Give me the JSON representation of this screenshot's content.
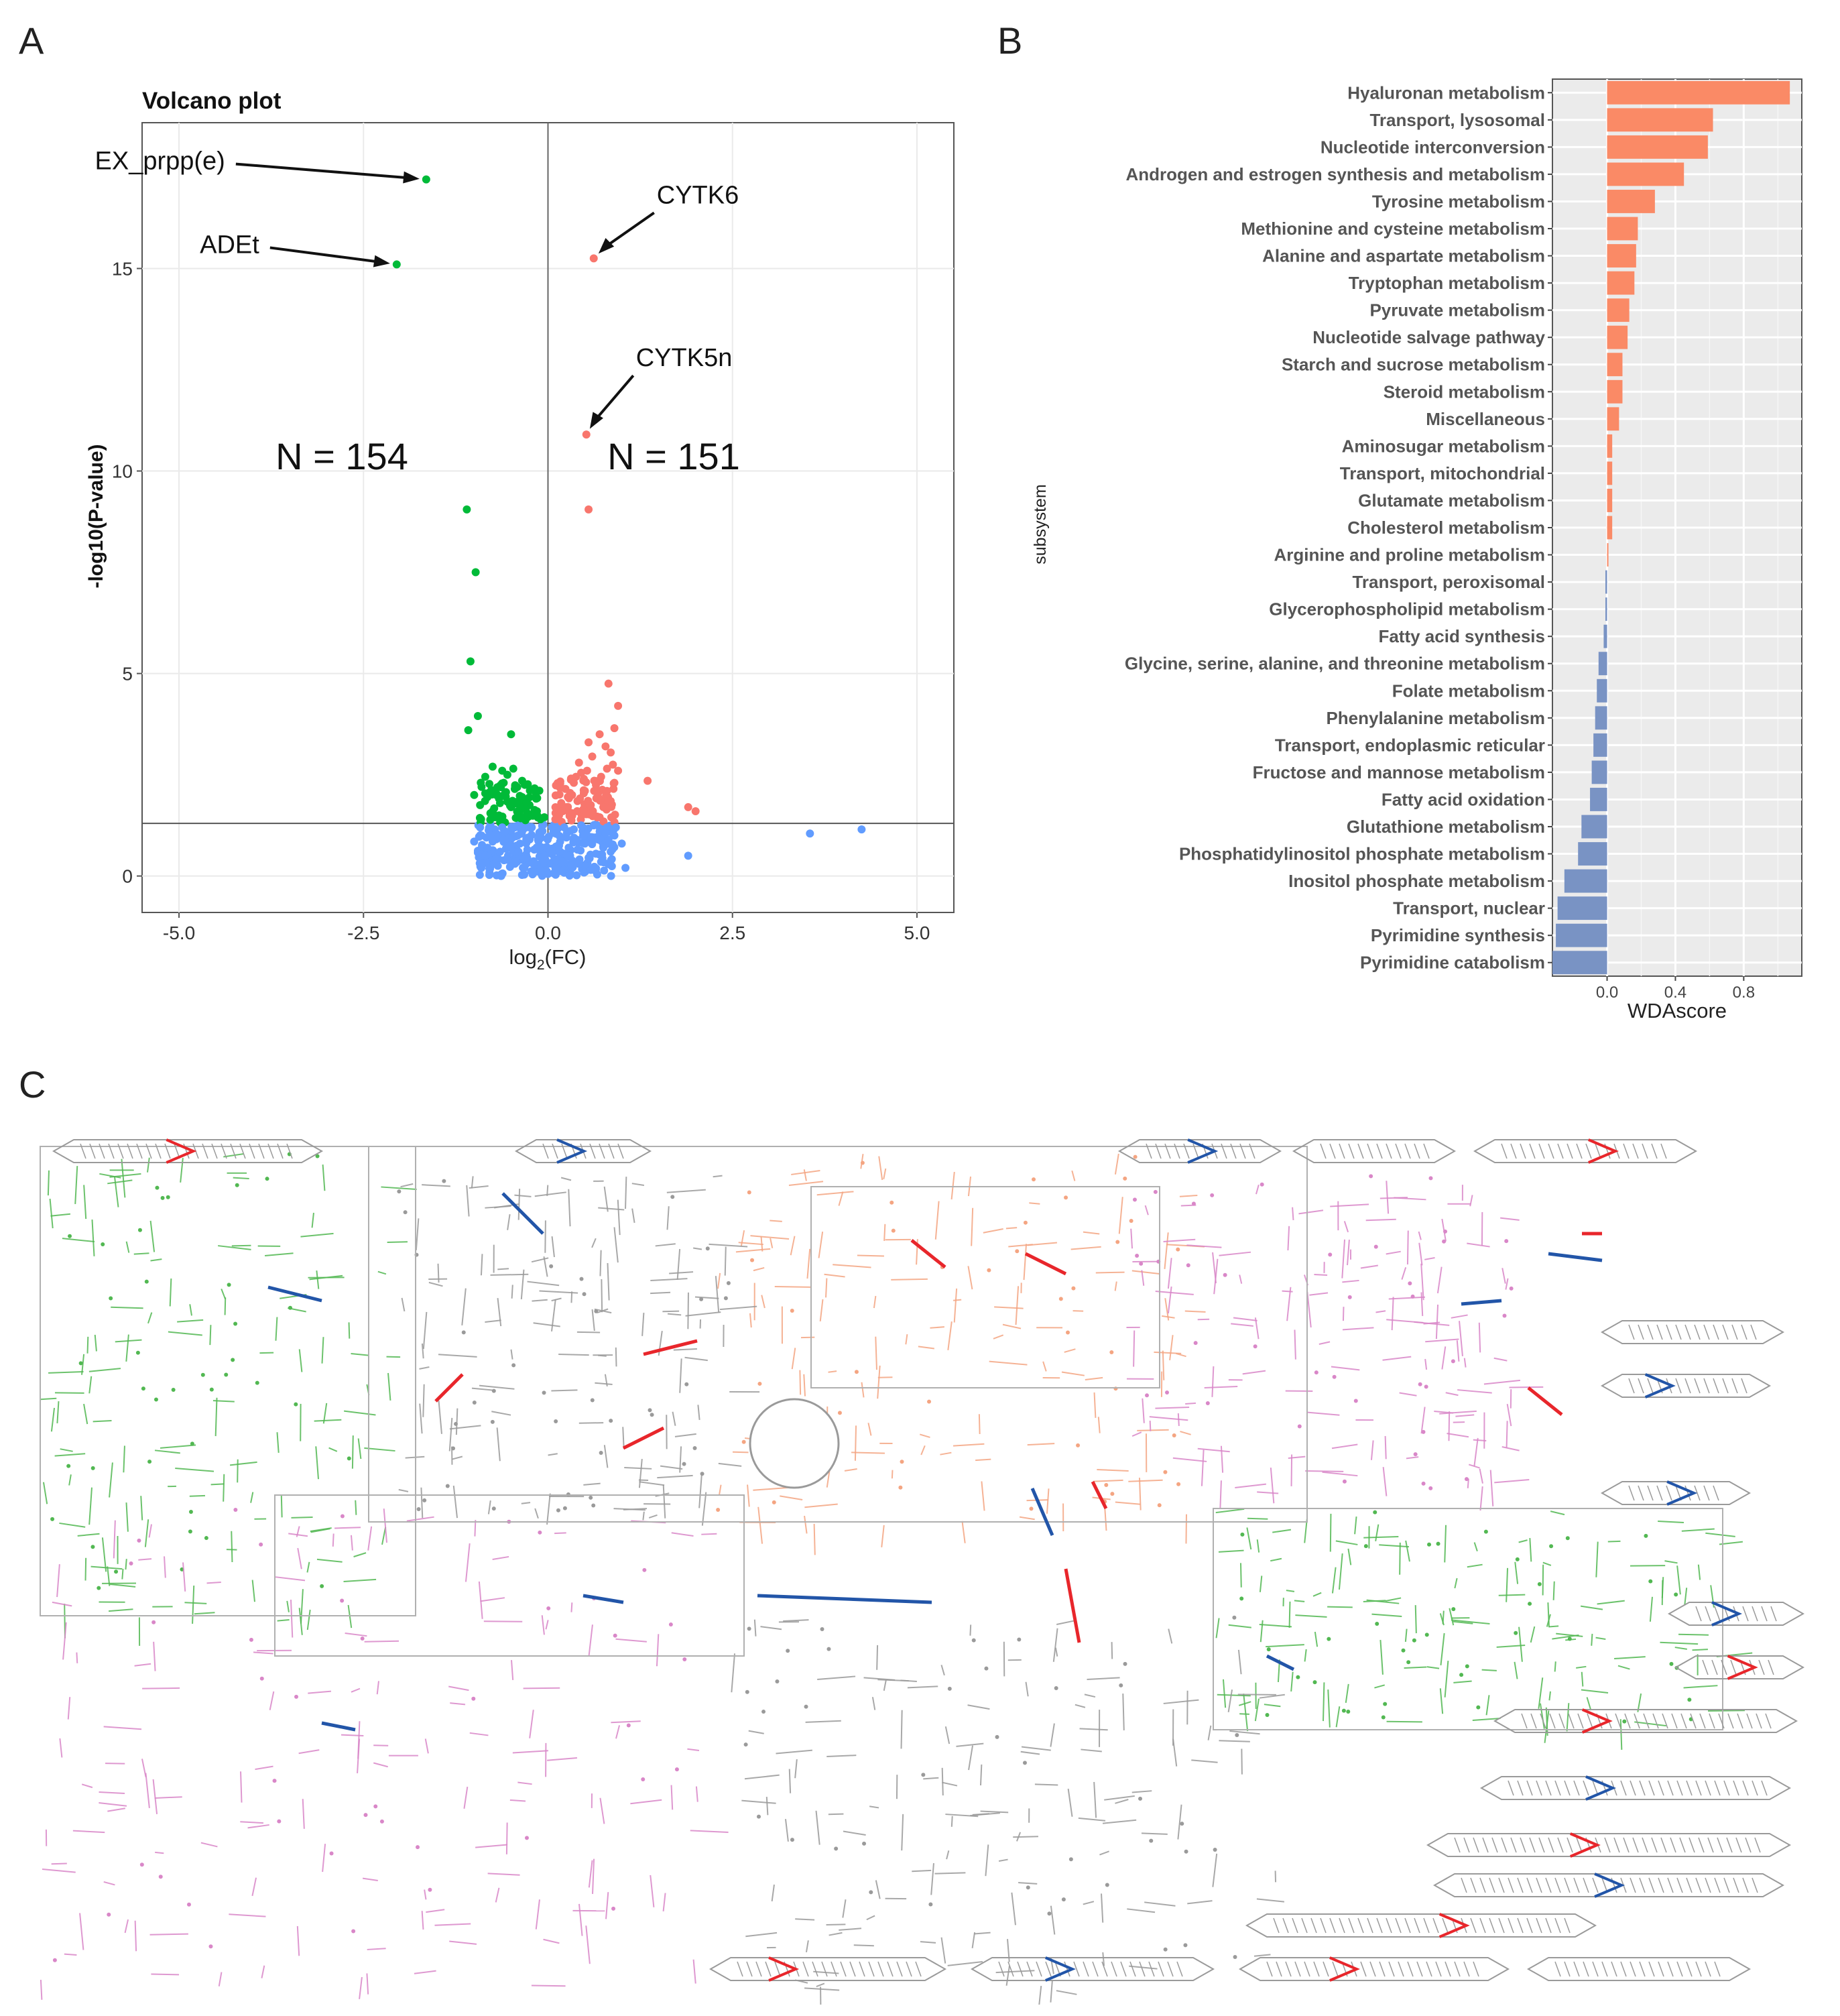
{
  "panels": {
    "a": "A",
    "b": "B",
    "c": "C"
  },
  "colors": {
    "up": "#F8766D",
    "down": "#00BA38",
    "ns": "#619CFF",
    "bar_pos": "#FA8A66",
    "bar_neg": "#7993C4",
    "panel_bg": "#EBEBEB",
    "map_pink": "#D987C8",
    "map_green": "#52B852",
    "map_orange": "#F4A582",
    "map_red": "#E8262B",
    "map_blue": "#2255A8",
    "map_gray": "#9A9A9A"
  },
  "chart_data": [
    {
      "type": "scatter",
      "title": "Volcano plot",
      "xlabel": "log2(FC)",
      "xlabel_main": "log",
      "xlabel_sub": "2",
      "xlabel_rest": "(FC)",
      "ylabel": "-log10(P-value)",
      "xlim": [
        -5.5,
        5.5
      ],
      "ylim": [
        -0.9,
        18.6
      ],
      "xticks": [
        -5.0,
        -2.5,
        0.0,
        2.5,
        5.0
      ],
      "xtick_labels": [
        "-5.0",
        "-2.5",
        "0.0",
        "2.5",
        "5.0"
      ],
      "yticks": [
        0,
        5,
        10,
        15
      ],
      "ytick_labels": [
        "0",
        "5",
        "10",
        "15"
      ],
      "threshold_y": 1.3,
      "counts": {
        "left": "N = 154",
        "right": "N = 151"
      },
      "annotations": [
        {
          "label": "EX_prpp(e)",
          "x": -1.65,
          "y": 17.2
        },
        {
          "label": "ADEt",
          "x": -2.05,
          "y": 15.1
        },
        {
          "label": "CYTK6",
          "x": 0.62,
          "y": 15.25
        },
        {
          "label": "CYTK5n",
          "x": 0.52,
          "y": 10.9
        }
      ],
      "series": [
        {
          "name": "up",
          "points": [
            [
              0.62,
              15.25
            ],
            [
              0.52,
              10.9
            ],
            [
              0.55,
              9.05
            ],
            [
              0.82,
              4.75
            ],
            [
              0.95,
              4.2
            ],
            [
              0.9,
              3.65
            ],
            [
              0.7,
              3.5
            ],
            [
              0.78,
              3.2
            ],
            [
              0.85,
              3.05
            ],
            [
              0.6,
              2.95
            ],
            [
              0.88,
              2.75
            ],
            [
              1.35,
              2.35
            ],
            [
              1.9,
              1.7
            ],
            [
              2.0,
              1.6
            ],
            [
              0.45,
              2.55
            ],
            [
              0.35,
              2.3
            ],
            [
              0.3,
              2.05
            ],
            [
              0.5,
              2.1
            ],
            [
              0.65,
              2.25
            ],
            [
              0.72,
              2.45
            ],
            [
              0.4,
              1.85
            ],
            [
              0.25,
              1.7
            ],
            [
              0.15,
              1.5
            ],
            [
              0.58,
              1.75
            ],
            [
              0.68,
              1.95
            ],
            [
              0.8,
              2.1
            ],
            [
              0.9,
              2.3
            ],
            [
              0.2,
              1.6
            ],
            [
              0.1,
              1.4
            ],
            [
              0.33,
              1.55
            ],
            [
              0.48,
              1.65
            ],
            [
              0.62,
              1.5
            ],
            [
              0.75,
              1.7
            ],
            [
              0.85,
              1.85
            ],
            [
              0.95,
              2.6
            ],
            [
              0.42,
              2.8
            ],
            [
              0.53,
              2.6
            ],
            [
              0.27,
              1.95
            ],
            [
              0.18,
              1.8
            ],
            [
              0.7,
              1.45
            ],
            [
              0.55,
              3.3
            ],
            [
              0.38,
              2.45
            ],
            [
              0.8,
              2.65
            ]
          ]
        },
        {
          "name": "down",
          "points": [
            [
              -1.65,
              17.2
            ],
            [
              -2.05,
              15.1
            ],
            [
              -1.1,
              9.05
            ],
            [
              -0.98,
              7.5
            ],
            [
              -1.05,
              5.3
            ],
            [
              -0.95,
              3.95
            ],
            [
              -0.5,
              3.5
            ],
            [
              -1.08,
              3.6
            ],
            [
              -0.75,
              2.7
            ],
            [
              -0.85,
              2.45
            ],
            [
              -0.6,
              2.3
            ],
            [
              -0.45,
              2.15
            ],
            [
              -0.35,
              1.95
            ],
            [
              -0.25,
              1.75
            ],
            [
              -0.15,
              1.6
            ],
            [
              -0.05,
              1.45
            ],
            [
              -0.7,
              2.0
            ],
            [
              -0.55,
              2.5
            ],
            [
              -0.4,
              1.85
            ],
            [
              -0.3,
              1.65
            ],
            [
              -0.9,
              2.2
            ],
            [
              -0.65,
              1.8
            ],
            [
              -0.2,
              1.5
            ],
            [
              -0.1,
              1.4
            ],
            [
              -0.78,
              1.55
            ],
            [
              -0.5,
              1.7
            ],
            [
              -0.35,
              2.35
            ],
            [
              -0.58,
              2.05
            ],
            [
              -0.92,
              1.75
            ],
            [
              -0.82,
              1.95
            ],
            [
              -0.47,
              2.65
            ],
            [
              -0.28,
              1.55
            ],
            [
              -0.62,
              2.6
            ],
            [
              -1.0,
              2.0
            ],
            [
              -0.72,
              1.45
            ]
          ]
        },
        {
          "name": "ns",
          "points": [
            [
              3.55,
              1.05
            ],
            [
              4.25,
              1.15
            ],
            [
              1.9,
              0.5
            ],
            [
              1.05,
              0.2
            ],
            [
              0.0,
              0.05
            ],
            [
              -0.1,
              0.15
            ],
            [
              0.1,
              0.2
            ],
            [
              -0.2,
              0.3
            ],
            [
              0.2,
              0.35
            ],
            [
              -0.3,
              0.45
            ],
            [
              0.3,
              0.5
            ],
            [
              -0.4,
              0.6
            ],
            [
              0.4,
              0.65
            ],
            [
              -0.5,
              0.75
            ],
            [
              0.5,
              0.8
            ],
            [
              -0.6,
              0.9
            ],
            [
              0.6,
              0.95
            ],
            [
              -0.7,
              1.05
            ],
            [
              0.7,
              1.1
            ],
            [
              -0.8,
              1.15
            ],
            [
              0.8,
              1.2
            ],
            [
              -0.9,
              1.0
            ],
            [
              0.9,
              1.0
            ],
            [
              -0.15,
              0.7
            ],
            [
              0.15,
              0.75
            ],
            [
              -0.25,
              0.9
            ],
            [
              0.25,
              0.95
            ],
            [
              -0.35,
              1.1
            ],
            [
              0.35,
              1.15
            ],
            [
              -0.45,
              1.2
            ],
            [
              0.45,
              1.25
            ],
            [
              -0.55,
              0.4
            ],
            [
              0.55,
              0.45
            ],
            [
              -0.65,
              0.6
            ],
            [
              0.65,
              0.55
            ],
            [
              -0.75,
              0.85
            ],
            [
              0.75,
              0.7
            ],
            [
              -0.85,
              0.5
            ],
            [
              0.85,
              0.6
            ],
            [
              -1.0,
              0.85
            ],
            [
              1.0,
              0.8
            ],
            [
              -0.05,
              0.5
            ],
            [
              0.05,
              0.6
            ],
            [
              -0.12,
              1.0
            ],
            [
              0.12,
              1.05
            ],
            [
              -0.22,
              1.2
            ],
            [
              0.22,
              1.2
            ],
            [
              -0.32,
              0.2
            ],
            [
              0.32,
              0.25
            ],
            [
              -0.42,
              0.35
            ],
            [
              0.42,
              0.3
            ],
            [
              -0.52,
              1.0
            ],
            [
              0.52,
              1.05
            ],
            [
              -0.62,
              1.2
            ],
            [
              0.62,
              1.25
            ],
            [
              -0.72,
              0.3
            ],
            [
              0.72,
              0.35
            ],
            [
              -0.82,
              0.7
            ],
            [
              0.82,
              0.9
            ],
            [
              -0.92,
              1.2
            ],
            [
              0.92,
              1.2
            ],
            [
              -0.18,
              0.1
            ],
            [
              0.18,
              0.12
            ],
            [
              -0.28,
              0.65
            ],
            [
              0.28,
              0.7
            ],
            [
              -0.38,
              0.8
            ],
            [
              0.38,
              0.85
            ],
            [
              -0.48,
              0.95
            ],
            [
              0.48,
              1.0
            ],
            [
              -0.58,
              1.1
            ],
            [
              0.58,
              0.15
            ],
            [
              -0.68,
              0.25
            ],
            [
              0.68,
              0.9
            ],
            [
              -0.78,
              1.0
            ],
            [
              0.78,
              1.05
            ],
            [
              -0.88,
              0.3
            ]
          ]
        }
      ]
    },
    {
      "type": "bar",
      "orientation": "horizontal",
      "ylabel": "subsystem",
      "xlabel": "WDAscore",
      "xlim": [
        -0.32,
        1.14
      ],
      "xticks": [
        0.0,
        0.4,
        0.8
      ],
      "xtick_labels": [
        "0.0",
        "0.4",
        "0.8"
      ],
      "categories": [
        "Hyaluronan metabolism",
        "Transport, lysosomal",
        "Nucleotide interconversion",
        "Androgen and estrogen synthesis and metabolism",
        "Tyrosine metabolism",
        "Methionine and cysteine metabolism",
        "Alanine and aspartate metabolism",
        "Tryptophan metabolism",
        "Pyruvate metabolism",
        "Nucleotide salvage pathway",
        "Starch and sucrose metabolism",
        "Steroid metabolism",
        "Miscellaneous",
        "Aminosugar metabolism",
        "Transport, mitochondrial",
        "Glutamate metabolism",
        "Cholesterol metabolism",
        "Arginine and proline metabolism",
        "Transport, peroxisomal",
        "Glycerophospholipid metabolism",
        "Fatty acid synthesis",
        "Glycine, serine, alanine, and threonine metabolism",
        "Folate metabolism",
        "Phenylalanine metabolism",
        "Transport, endoplasmic reticular",
        "Fructose and mannose metabolism",
        "Fatty acid oxidation",
        "Glutathione metabolism",
        "Phosphatidylinositol phosphate metabolism",
        "Inositol phosphate metabolism",
        "Transport, nuclear",
        "Pyrimidine synthesis",
        "Pyrimidine catabolism"
      ],
      "values": [
        1.07,
        0.62,
        0.59,
        0.45,
        0.28,
        0.18,
        0.17,
        0.16,
        0.13,
        0.12,
        0.09,
        0.09,
        0.07,
        0.03,
        0.03,
        0.03,
        0.03,
        0.005,
        -0.01,
        -0.01,
        -0.02,
        -0.05,
        -0.06,
        -0.07,
        -0.08,
        -0.09,
        -0.1,
        -0.15,
        -0.17,
        -0.25,
        -0.29,
        -0.3,
        -0.32
      ]
    }
  ]
}
